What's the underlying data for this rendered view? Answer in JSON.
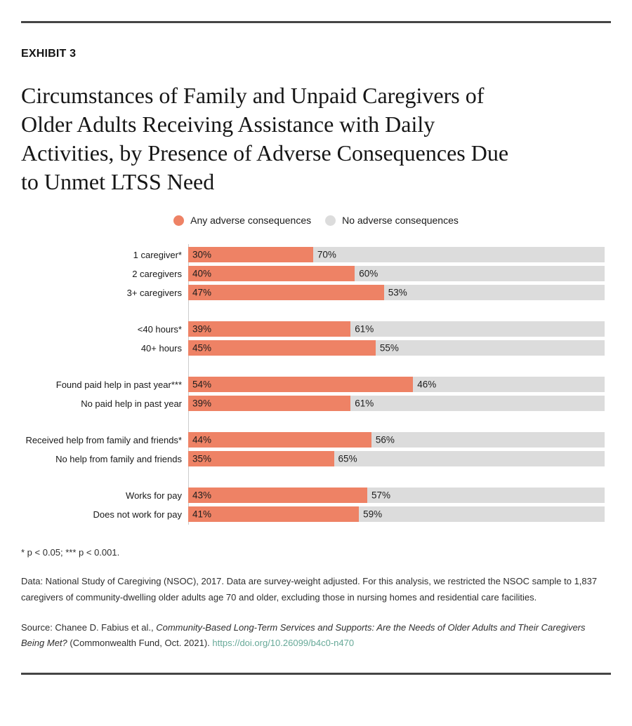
{
  "exhibit_label": "EXHIBIT 3",
  "title_lines": [
    "Circumstances of Family and Unpaid Caregivers of",
    "Older Adults Receiving Assistance with Daily",
    "Activities, by Presence of Adverse Consequences Due",
    "to Unmet LTSS Need"
  ],
  "colors": {
    "any_adverse": "#ee8265",
    "no_adverse": "#dcdcdc",
    "link": "#67a998",
    "rule": "#454545"
  },
  "legend": {
    "items": [
      {
        "label": "Any adverse consequences",
        "color": "#ee8265"
      },
      {
        "label": "No adverse consequences",
        "color": "#dcdcdc"
      }
    ]
  },
  "chart_data": {
    "type": "bar",
    "orientation": "horizontal",
    "stacked": true,
    "title": "Circumstances of Family and Unpaid Caregivers of Older Adults Receiving Assistance with Daily Activities, by Presence of Adverse Consequences Due to Unmet LTSS Need",
    "xlim": [
      0,
      100
    ],
    "value_suffix": "%",
    "grid": false,
    "legend_position": "top-center",
    "series_names": [
      "Any adverse consequences",
      "No adverse consequences"
    ],
    "series_colors": [
      "#ee8265",
      "#dcdcdc"
    ],
    "groups": [
      {
        "rows": [
          {
            "category": "1 caregiver*",
            "values": [
              30,
              70
            ]
          },
          {
            "category": "2 caregivers",
            "values": [
              40,
              60
            ]
          },
          {
            "category": "3+ caregivers",
            "values": [
              47,
              53
            ]
          }
        ]
      },
      {
        "rows": [
          {
            "category": "<40 hours*",
            "values": [
              39,
              61
            ]
          },
          {
            "category": "40+ hours",
            "values": [
              45,
              55
            ]
          }
        ]
      },
      {
        "rows": [
          {
            "category": "Found paid help in past year***",
            "values": [
              54,
              46
            ]
          },
          {
            "category": "No paid help in past year",
            "values": [
              39,
              61
            ]
          }
        ]
      },
      {
        "rows": [
          {
            "category": "Received help from family and friends*",
            "values": [
              44,
              56
            ]
          },
          {
            "category": "No help from family and friends",
            "values": [
              35,
              65
            ]
          }
        ]
      },
      {
        "rows": [
          {
            "category": "Works for pay",
            "values": [
              43,
              57
            ]
          },
          {
            "category": "Does not work for pay",
            "values": [
              41,
              59
            ]
          }
        ]
      }
    ]
  },
  "notes": {
    "significance": "* p < 0.05; *** p < 0.001.",
    "data": "Data: National Study of Caregiving (NSOC), 2017. Data are survey-weight adjusted. For this analysis, we restricted the NSOC sample to 1,837 caregivers of community-dwelling older adults age 70 and older, excluding those in nursing homes and residential care facilities.",
    "source_prefix": "Source: Chanee D. Fabius et al., ",
    "source_italic": "Community-Based Long-Term Services and Supports: Are the Needs of Older Adults and Their Caregivers Being Met?",
    "source_suffix": " (Commonwealth Fund, Oct. 2021). ",
    "source_link": "https://doi.org/10.26099/b4c0-n470"
  }
}
